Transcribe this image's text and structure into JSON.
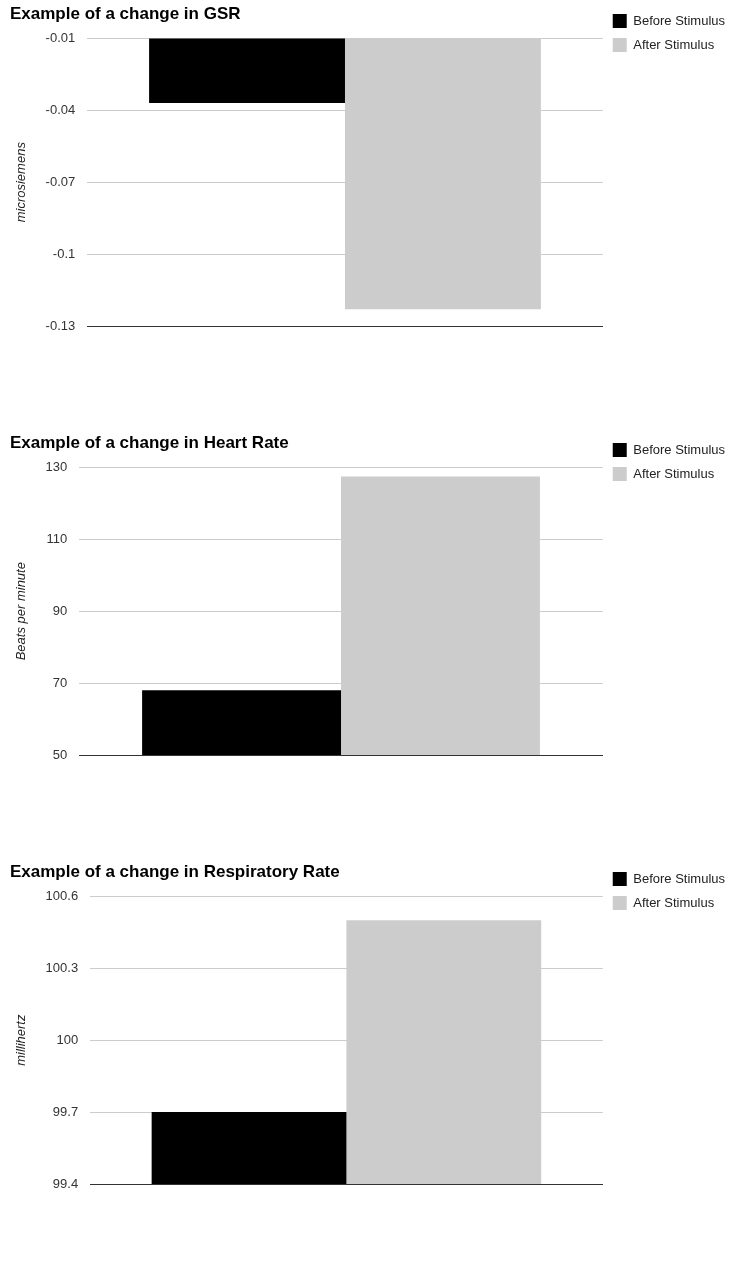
{
  "chart_data": [
    {
      "type": "bar",
      "title": "Example of a change in GSR",
      "ylabel": "microsiemens",
      "categories": [
        null
      ],
      "series": [
        {
          "name": "Before Stimulus",
          "color": "#000000",
          "values": [
            -0.037
          ]
        },
        {
          "name": "After Stimulus",
          "color": "#cccccc",
          "values": [
            -0.123
          ]
        }
      ],
      "ylim": [
        -0.13,
        -0.01
      ],
      "yticks": [
        -0.13,
        -0.1,
        -0.07,
        -0.04,
        -0.01
      ],
      "grid": "y",
      "legend": "top right",
      "tick_labels": "y"
    },
    {
      "type": "bar",
      "title": "Example of a change in Heart Rate",
      "ylabel": "Beats per minute",
      "categories": [
        null
      ],
      "series": [
        {
          "name": "Before Stimulus",
          "color": "#000000",
          "values": [
            68
          ]
        },
        {
          "name": "After Stimulus",
          "color": "#cccccc",
          "values": [
            127.5
          ]
        }
      ],
      "ylim": [
        50,
        130
      ],
      "yticks": [
        50,
        70,
        90,
        110,
        130
      ],
      "grid": "y",
      "legend": "top right",
      "tick_labels": "y"
    },
    {
      "type": "bar",
      "title": "Example of a change in Respiratory Rate",
      "ylabel": "millihertz",
      "categories": [
        null
      ],
      "series": [
        {
          "name": "Before Stimulus",
          "color": "#000000",
          "values": [
            99.7
          ]
        },
        {
          "name": "After Stimulus",
          "color": "#cccccc",
          "values": [
            100.5
          ]
        }
      ],
      "ylim": [
        99.4,
        100.6
      ],
      "yticks": [
        99.4,
        99.7,
        100,
        100.3,
        100.6
      ],
      "grid": "y",
      "legend": "top right",
      "tick_labels": "y"
    }
  ]
}
